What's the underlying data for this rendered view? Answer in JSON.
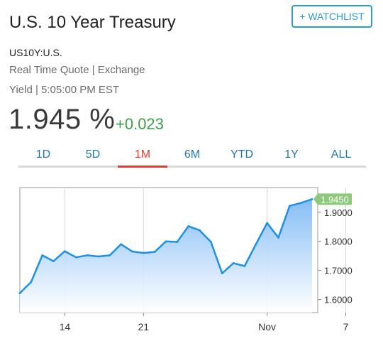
{
  "header": {
    "title": "U.S. 10 Year Treasury",
    "watchlist_label": "+ WATCHLIST",
    "symbol": "US10Y:U.S.",
    "quote_type": "Real Time Quote | Exchange",
    "yield_time": "Yield | 5:05:00 PM EST"
  },
  "quote": {
    "price": "1.945 %",
    "change": "+0.023"
  },
  "tabs": [
    {
      "label": "1D"
    },
    {
      "label": "5D"
    },
    {
      "label": "1M",
      "active": true
    },
    {
      "label": "6M"
    },
    {
      "label": "YTD"
    },
    {
      "label": "1Y"
    },
    {
      "label": "ALL"
    }
  ],
  "colors": {
    "accent": "#2d9bd3",
    "positive": "#3aa04a",
    "active_tab": "#e03c31",
    "line": "#1e90e6",
    "last_badge": "#8cc97a"
  },
  "chart_data": {
    "type": "area",
    "x_tick_labels": [
      "14",
      "21",
      "Nov",
      "7"
    ],
    "x_tick_index": [
      4,
      11,
      22,
      29
    ],
    "values": [
      1.622,
      1.66,
      1.752,
      1.732,
      1.766,
      1.745,
      1.752,
      1.748,
      1.752,
      1.79,
      1.765,
      1.76,
      1.764,
      1.8,
      1.798,
      1.852,
      1.838,
      1.798,
      1.69,
      1.725,
      1.715,
      1.79,
      1.863,
      1.813,
      1.922,
      1.932,
      1.945
    ],
    "ylim": [
      1.555,
      1.985
    ],
    "y_ticks": [
      "1.9000",
      "1.8000",
      "1.7000",
      "1.6000"
    ],
    "last_label": "1.9450",
    "grid": "vertical"
  }
}
